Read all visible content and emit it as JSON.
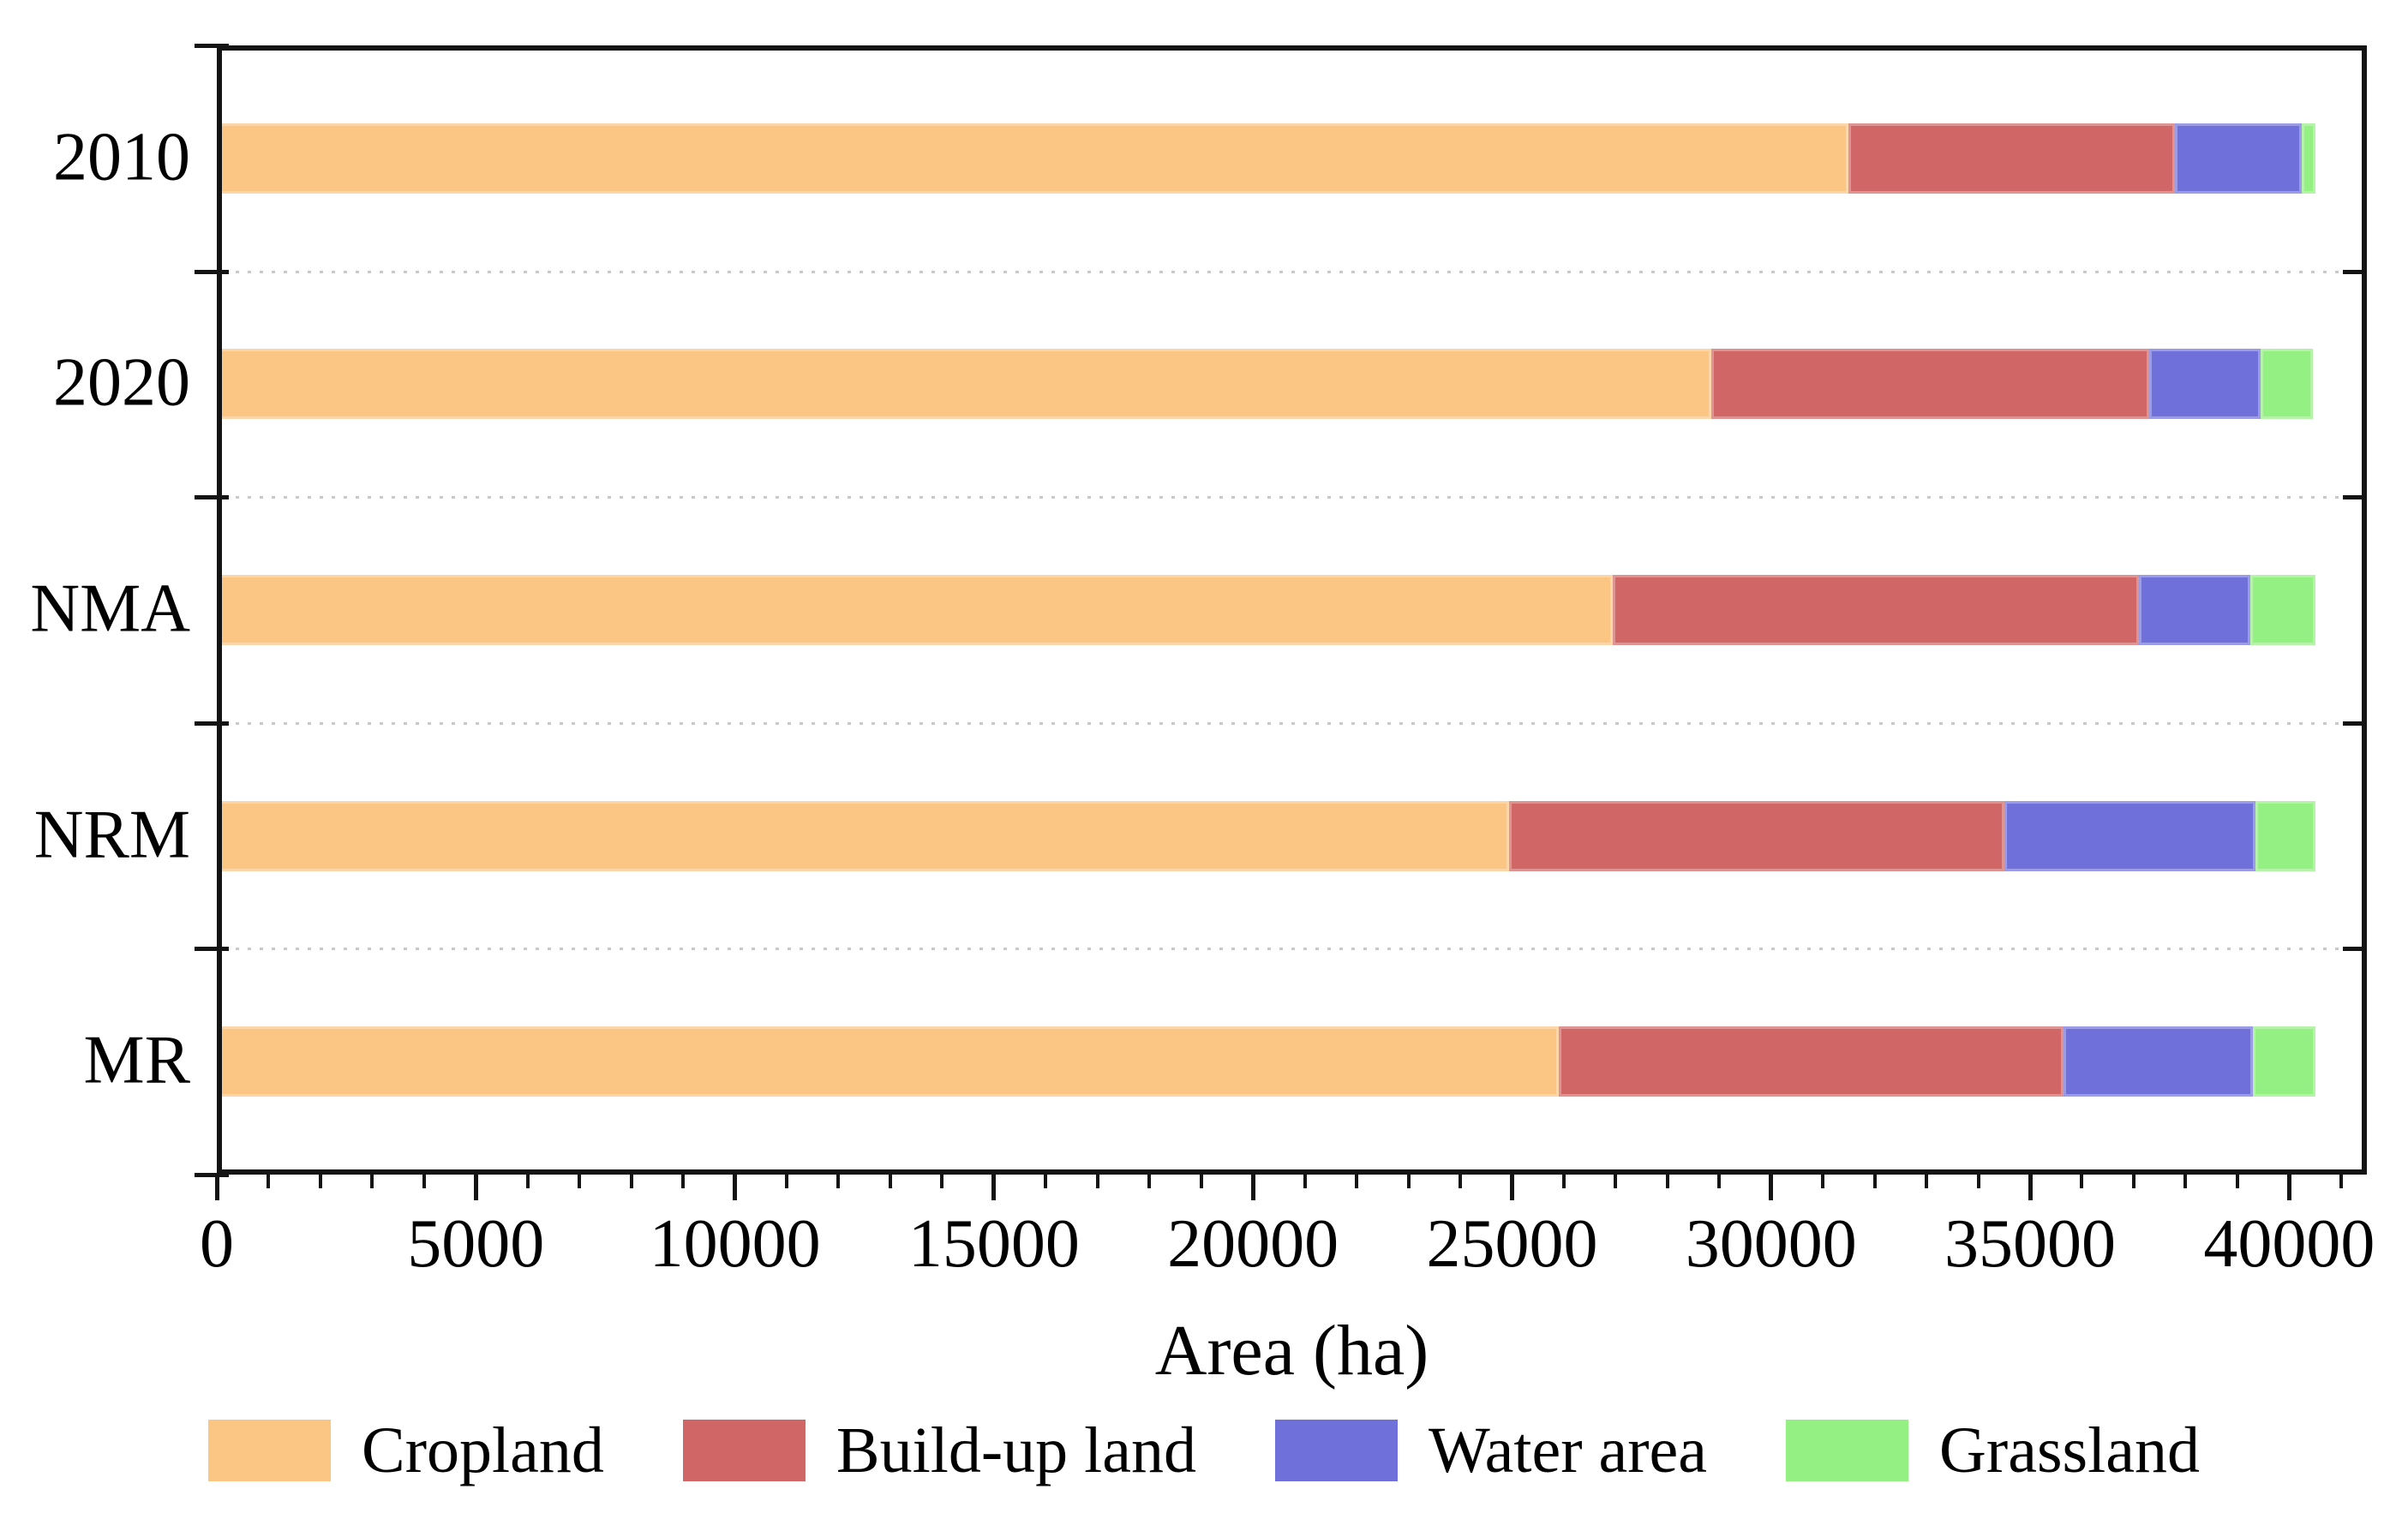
{
  "chart_data": {
    "type": "bar",
    "orientation": "horizontal",
    "stacked": true,
    "title": "",
    "xlabel": "Area (ha)",
    "ylabel": "",
    "categories": [
      "2010",
      "2020",
      "NMA",
      "NRM",
      "MR"
    ],
    "series": [
      {
        "name": "Cropland",
        "color": "#FBC584",
        "values": [
          31500,
          28850,
          26950,
          24950,
          25900
        ]
      },
      {
        "name": "Build-up land",
        "color": "#D16666",
        "values": [
          6300,
          8450,
          10150,
          9550,
          9750
        ]
      },
      {
        "name": "Water area",
        "color": "#7070DB",
        "values": [
          2450,
          2150,
          2150,
          4850,
          3650
        ]
      },
      {
        "name": "Grassland",
        "color": "#95F083",
        "values": [
          250,
          1000,
          1250,
          1150,
          1200
        ]
      }
    ],
    "bar_totals": [
      40500,
      40450,
      40500,
      40500,
      40500
    ],
    "xlim": [
      0,
      41500
    ],
    "x_major_ticks": [
      0,
      5000,
      10000,
      15000,
      20000,
      25000,
      30000,
      35000,
      40000
    ],
    "x_tick_labels": [
      "0",
      "5000",
      "10000",
      "15000",
      "20000",
      "25000",
      "30000",
      "35000",
      "40000"
    ],
    "x_minor_tick_interval": 1000,
    "grid": "horizontal dotted lines between category bands",
    "legend_position": "bottom",
    "frame_color": "#141414",
    "gridline_color": "#c9c9c9",
    "text_color": "#000000"
  }
}
